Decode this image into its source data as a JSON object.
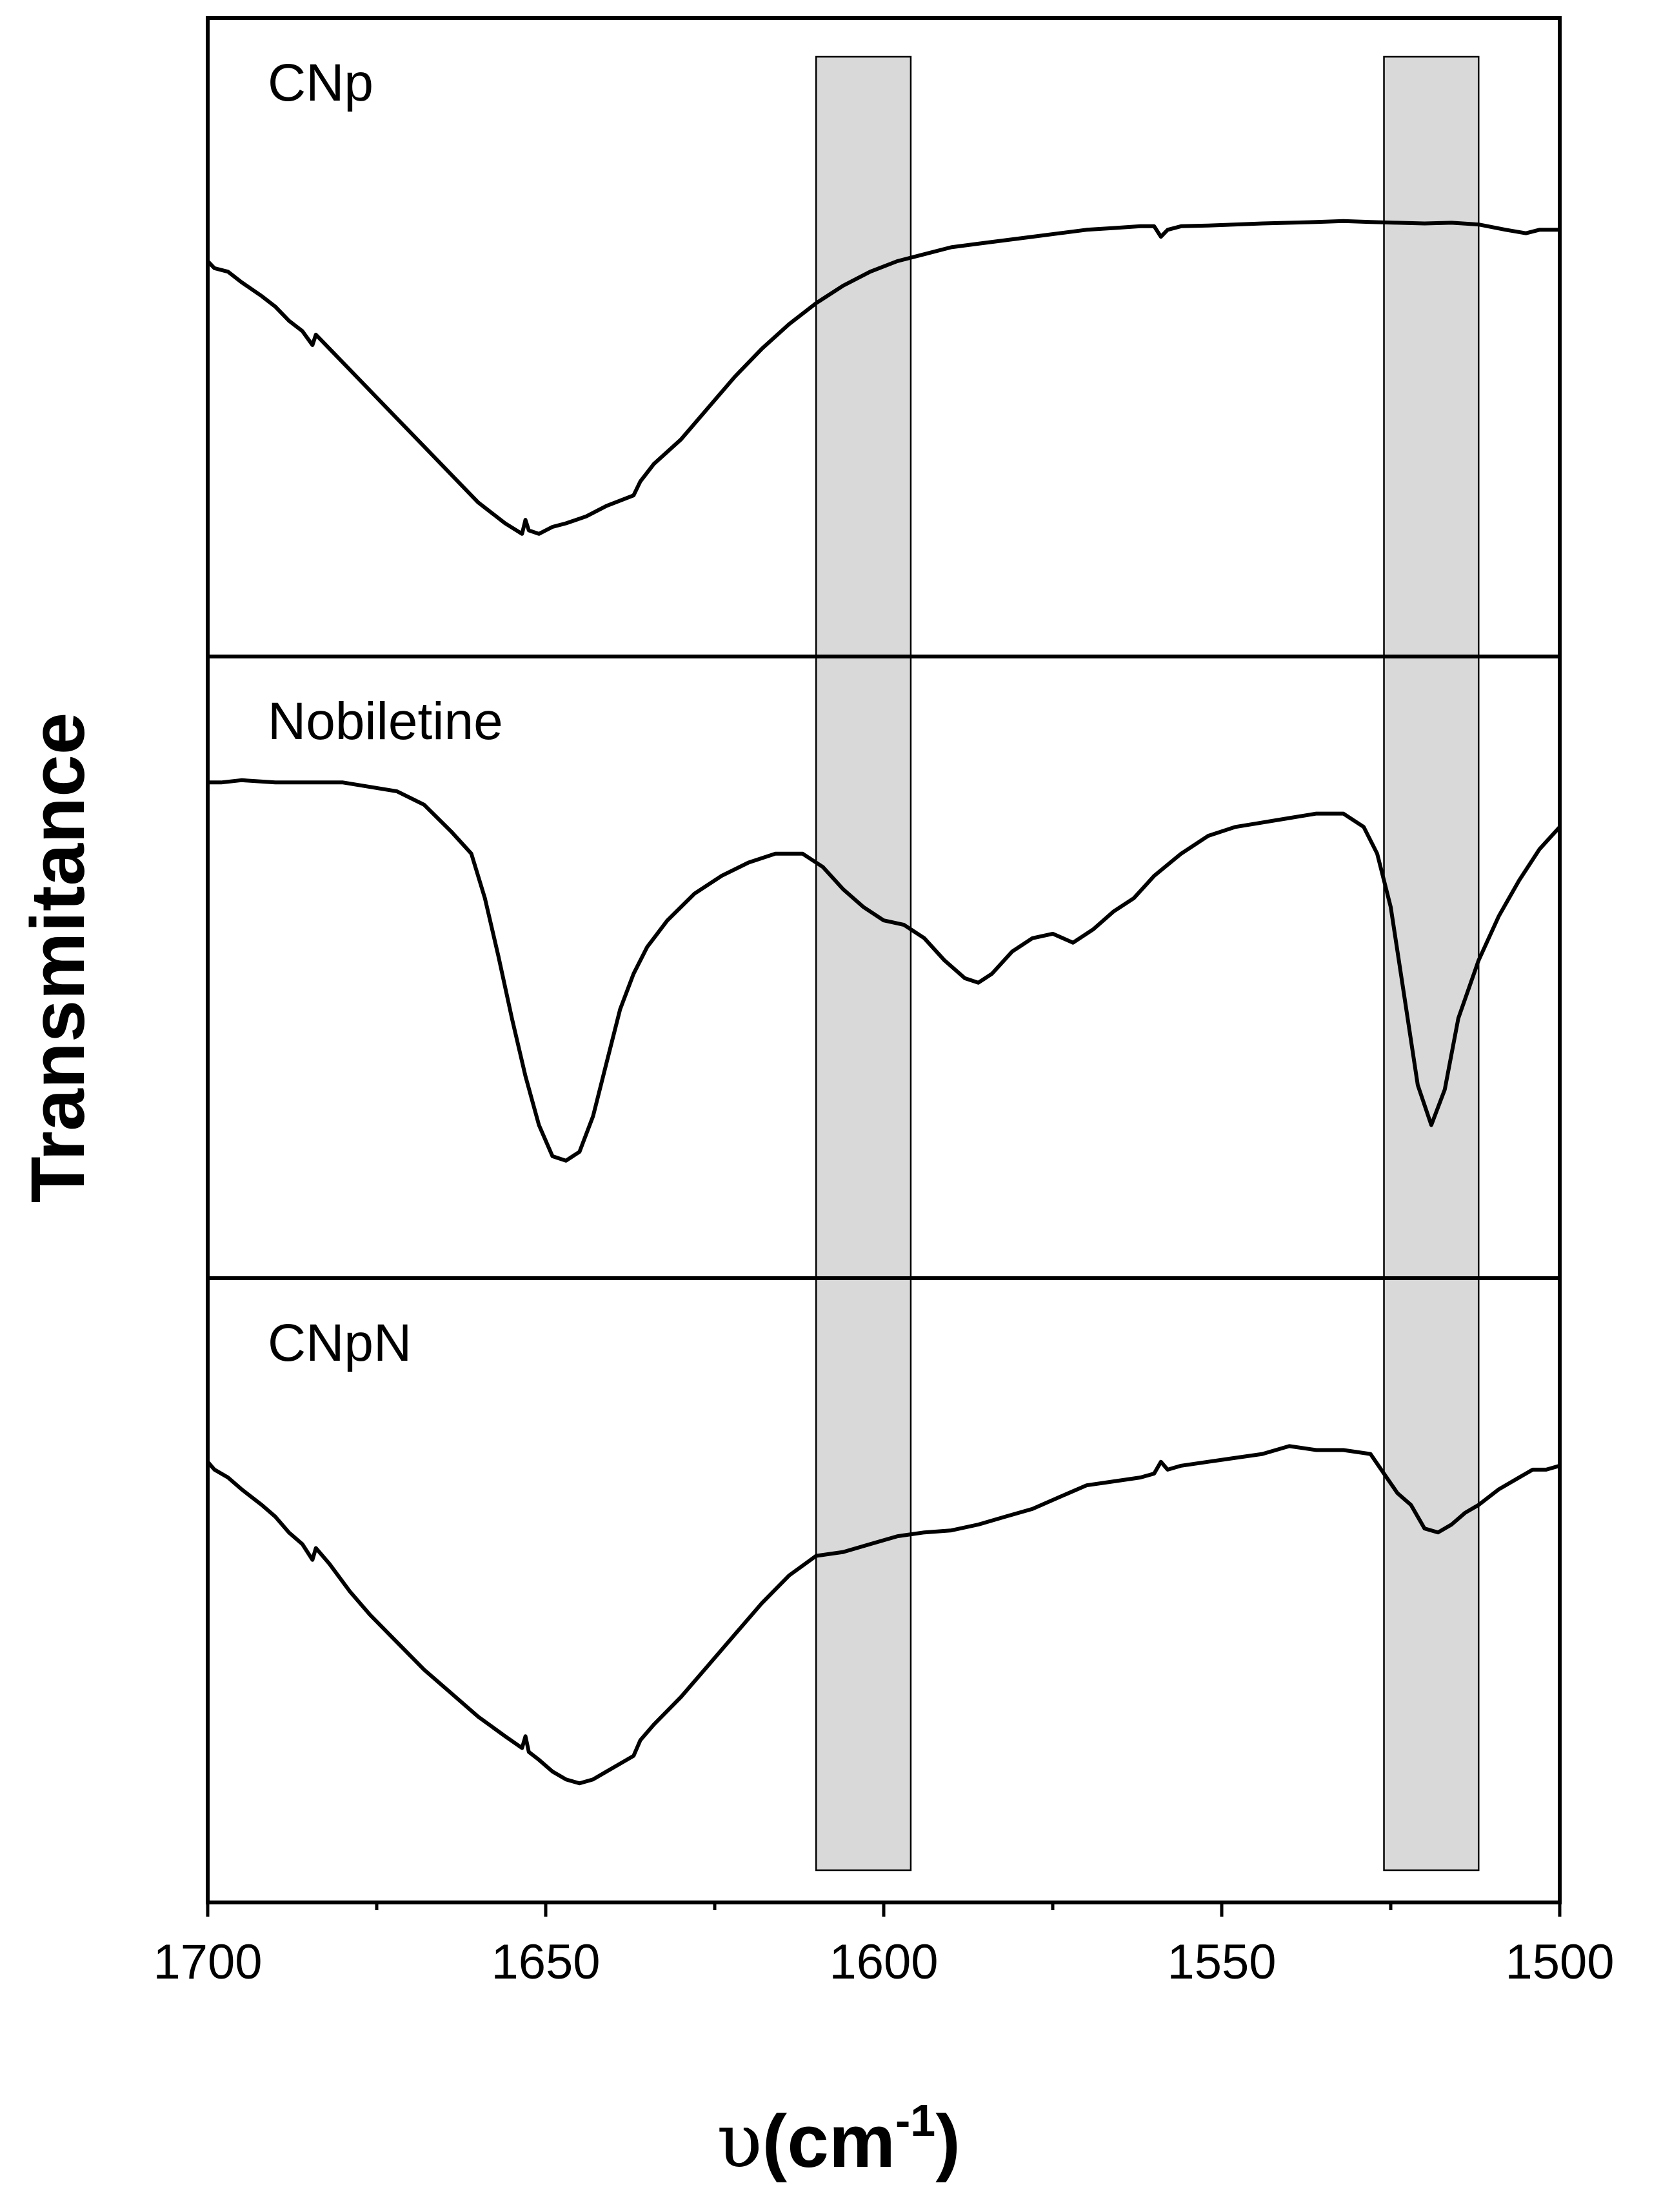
{
  "chart_data": {
    "type": "line",
    "xlabel": {
      "prefix": "υ",
      "open": "(",
      "unit": "cm",
      "exponent": "-1",
      "close": ")"
    },
    "ylabel": "Transmitance",
    "xlim": [
      1700,
      1500
    ],
    "x_ticks": [
      "1700",
      "1650",
      "1600",
      "1550",
      "1500"
    ],
    "grid": false,
    "highlight_bands": [
      {
        "x_from": 1610,
        "x_to": 1596
      },
      {
        "x_from": 1526,
        "x_to": 1512
      }
    ],
    "series": [
      {
        "name": "CNp",
        "x": [
          1700,
          1699,
          1697,
          1695,
          1692,
          1690,
          1688,
          1686,
          1684.5,
          1684,
          1682,
          1679,
          1676,
          1672,
          1668,
          1664,
          1660,
          1656,
          1653.5,
          1653,
          1652.5,
          1651,
          1649,
          1647,
          1644,
          1641,
          1637,
          1636,
          1634,
          1630,
          1626,
          1622,
          1618,
          1614,
          1610,
          1606,
          1602,
          1598,
          1594,
          1590,
          1586,
          1582,
          1578,
          1574,
          1570,
          1566,
          1562,
          1560,
          1559,
          1558,
          1556,
          1552,
          1548,
          1544,
          1540,
          1536,
          1532,
          1528,
          1524,
          1520,
          1516,
          1512,
          1508,
          1505,
          1503,
          1500
        ],
        "y": [
          0.12,
          0.14,
          0.15,
          0.18,
          0.22,
          0.25,
          0.29,
          0.32,
          0.36,
          0.33,
          0.37,
          0.43,
          0.49,
          0.57,
          0.65,
          0.73,
          0.81,
          0.87,
          0.9,
          0.86,
          0.89,
          0.9,
          0.88,
          0.87,
          0.85,
          0.82,
          0.79,
          0.75,
          0.7,
          0.63,
          0.54,
          0.45,
          0.37,
          0.3,
          0.24,
          0.19,
          0.15,
          0.12,
          0.1,
          0.08,
          0.07,
          0.06,
          0.05,
          0.04,
          0.03,
          0.025,
          0.02,
          0.02,
          0.05,
          0.03,
          0.02,
          0.018,
          0.015,
          0.012,
          0.01,
          0.008,
          0.005,
          0.008,
          0.01,
          0.012,
          0.01,
          0.015,
          0.03,
          0.04,
          0.03,
          0.03
        ]
      },
      {
        "name": "Nobiletine",
        "x": [
          1700,
          1698,
          1695,
          1690,
          1685,
          1680,
          1676,
          1672,
          1668,
          1664,
          1661,
          1659,
          1657,
          1655,
          1653,
          1651,
          1649,
          1647,
          1645,
          1643,
          1641,
          1639,
          1637,
          1635,
          1632,
          1628,
          1624,
          1620,
          1616,
          1612,
          1609,
          1606,
          1603,
          1600,
          1597,
          1594,
          1591,
          1588,
          1586,
          1584,
          1581,
          1578,
          1575,
          1572,
          1569,
          1566,
          1563,
          1560,
          1556,
          1552,
          1548,
          1544,
          1540,
          1536,
          1532,
          1529,
          1527,
          1525,
          1523,
          1521,
          1519,
          1517,
          1515,
          1512,
          1509,
          1506,
          1503,
          1500
        ],
        "y": [
          0.07,
          0.07,
          0.065,
          0.07,
          0.07,
          0.07,
          0.08,
          0.09,
          0.12,
          0.18,
          0.23,
          0.33,
          0.46,
          0.6,
          0.73,
          0.84,
          0.91,
          0.92,
          0.9,
          0.82,
          0.7,
          0.58,
          0.5,
          0.44,
          0.38,
          0.32,
          0.28,
          0.25,
          0.23,
          0.23,
          0.26,
          0.31,
          0.35,
          0.38,
          0.39,
          0.42,
          0.47,
          0.51,
          0.52,
          0.5,
          0.45,
          0.42,
          0.41,
          0.43,
          0.4,
          0.36,
          0.33,
          0.28,
          0.23,
          0.19,
          0.17,
          0.16,
          0.15,
          0.14,
          0.14,
          0.17,
          0.23,
          0.35,
          0.55,
          0.75,
          0.84,
          0.76,
          0.6,
          0.47,
          0.37,
          0.29,
          0.22,
          0.17
        ]
      },
      {
        "name": "CNpN",
        "x": [
          1700,
          1699,
          1697,
          1695,
          1692,
          1690,
          1688,
          1686,
          1684.5,
          1684,
          1682,
          1679,
          1676,
          1672,
          1668,
          1664,
          1660,
          1656,
          1653.5,
          1653,
          1652.5,
          1651,
          1649,
          1647,
          1645,
          1643,
          1641,
          1637,
          1636,
          1634,
          1630,
          1626,
          1622,
          1618,
          1614,
          1610,
          1606,
          1602,
          1598,
          1594,
          1590,
          1586,
          1582,
          1578,
          1574,
          1570,
          1566,
          1562,
          1560,
          1559,
          1558,
          1556,
          1552,
          1548,
          1544,
          1540,
          1536,
          1532,
          1528,
          1526,
          1524,
          1522,
          1520,
          1518,
          1516,
          1514,
          1512,
          1509,
          1506,
          1504,
          1502,
          1500
        ],
        "y": [
          0.09,
          0.11,
          0.13,
          0.16,
          0.2,
          0.23,
          0.27,
          0.3,
          0.34,
          0.31,
          0.35,
          0.42,
          0.48,
          0.55,
          0.62,
          0.68,
          0.74,
          0.79,
          0.82,
          0.79,
          0.83,
          0.85,
          0.88,
          0.9,
          0.91,
          0.9,
          0.88,
          0.84,
          0.8,
          0.76,
          0.69,
          0.61,
          0.53,
          0.45,
          0.38,
          0.33,
          0.32,
          0.3,
          0.28,
          0.27,
          0.265,
          0.25,
          0.23,
          0.21,
          0.18,
          0.15,
          0.14,
          0.13,
          0.12,
          0.09,
          0.11,
          0.1,
          0.09,
          0.08,
          0.07,
          0.05,
          0.06,
          0.06,
          0.07,
          0.12,
          0.17,
          0.2,
          0.26,
          0.27,
          0.25,
          0.22,
          0.2,
          0.16,
          0.13,
          0.11,
          0.11,
          0.1
        ]
      }
    ]
  }
}
